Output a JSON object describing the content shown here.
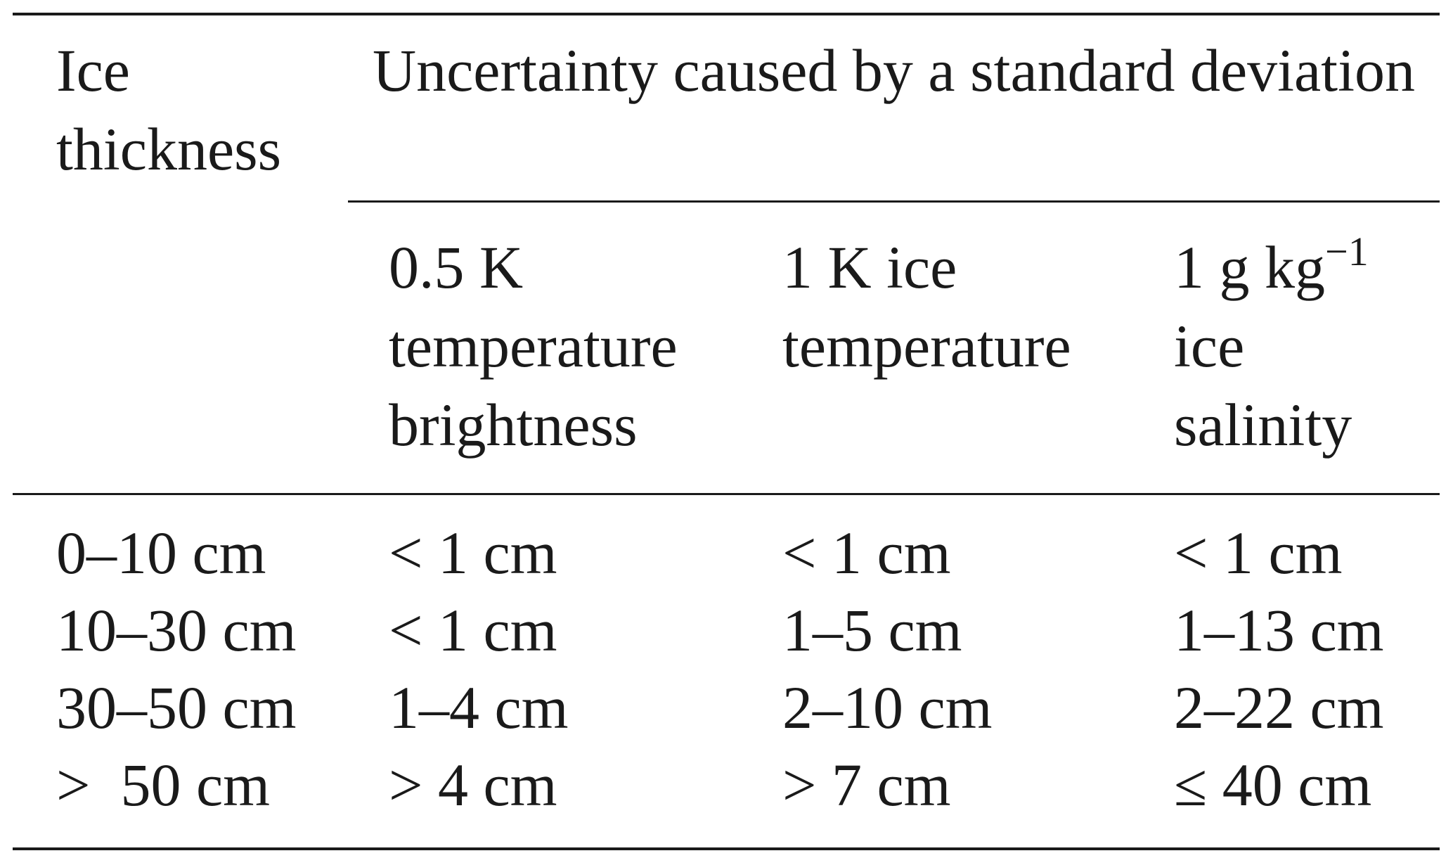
{
  "table": {
    "stub_header": [
      "Ice",
      "thickness"
    ],
    "group_header": "Uncertainty caused by a standard deviation",
    "columns": [
      {
        "lines": [
          "0.5 K",
          "temperature",
          "brightness"
        ]
      },
      {
        "lines": [
          "1 K ice",
          "temperature"
        ]
      },
      {
        "unit_base": "1 g kg",
        "unit_exp": "−1",
        "lines": [
          "ice",
          "salinity"
        ]
      }
    ],
    "rows": [
      {
        "thickness": "0–10 cm",
        "brightness": "< 1 cm",
        "ice_temp": "< 1 cm",
        "salinity": "< 1 cm"
      },
      {
        "thickness": "10–30 cm",
        "brightness": "< 1 cm",
        "ice_temp": "1–5 cm",
        "salinity": "1–13 cm"
      },
      {
        "thickness": "30–50 cm",
        "brightness": "1–4 cm",
        "ice_temp": "2–10 cm",
        "salinity": "2–22 cm"
      },
      {
        "thickness": ">  50 cm",
        "brightness": "> 4 cm",
        "ice_temp": "> 7 cm",
        "salinity": "≤ 40 cm"
      }
    ]
  }
}
